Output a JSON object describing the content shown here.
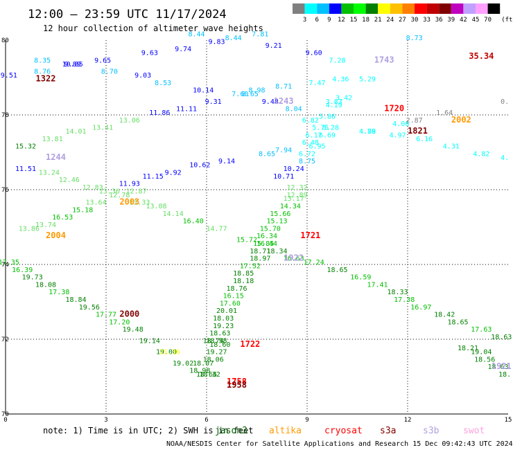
{
  "title": "12:00 – 23:59 UTC 11/17/2024",
  "subtitle": "12 hour collection of altimeter wave heights",
  "colorbar": {
    "labels": [
      "3",
      "6",
      "9",
      "12",
      "15",
      "18",
      "21",
      "24",
      "27",
      "30",
      "33",
      "36",
      "39",
      "42",
      "45",
      "70"
    ],
    "unit": "(ft)",
    "colors": [
      "#808080",
      "#00ffff",
      "#00c0ff",
      "#0000ff",
      "#00c000",
      "#00ff00",
      "#008000",
      "#ffff00",
      "#ffc000",
      "#ff8000",
      "#ff0000",
      "#c00000",
      "#800000",
      "#c000c0",
      "#c0a0ff",
      "#ffa0ff",
      "#000000"
    ]
  },
  "note_text": "note: 1) Time is in UTC; 2) SWH is in feet",
  "satellites": [
    {
      "name": "jason3",
      "color": "#006400"
    },
    {
      "name": "altika",
      "color": "#ff9900"
    },
    {
      "name": "cryosat",
      "color": "#ff0000"
    },
    {
      "name": "s3a",
      "color": "#800000"
    },
    {
      "name": "s3b",
      "color": "#b0a0e0"
    },
    {
      "name": "swot",
      "color": "#ffa0e0"
    }
  ],
  "footer": "NOAA/NESDIS Center for Satellite Applications and Research   15 Dec 09:42:43 UTC 2024",
  "chart_data": {
    "type": "scatter",
    "title": "12:00 – 23:59 UTC 11/17/2024",
    "subtitle": "12 hour collection of altimeter wave heights",
    "xlabel": "",
    "ylabel": "",
    "x_ticks": [
      "0",
      "3",
      "6",
      "9",
      "12",
      "15"
    ],
    "y_ticks": [
      "80",
      "78",
      "76",
      "74",
      "72",
      "70"
    ],
    "xlim": [
      0,
      15
    ],
    "ylim": [
      70,
      80
    ],
    "grid": true,
    "points": [
      {
        "x": 0.1,
        "y": 79.0,
        "v": "9.51",
        "c": "#0000ff"
      },
      {
        "x": 1.1,
        "y": 79.4,
        "v": "8.35",
        "c": "#00c0ff"
      },
      {
        "x": 1.1,
        "y": 79.1,
        "v": "8.76",
        "c": "#00c0ff"
      },
      {
        "x": 2.0,
        "y": 79.3,
        "v": "10.05",
        "c": "#0000ff"
      },
      {
        "x": 2.0,
        "y": 79.3,
        "v": "9.89",
        "c": "#0000ff"
      },
      {
        "x": 2.9,
        "y": 79.4,
        "v": "9.65",
        "c": "#0000ff"
      },
      {
        "x": 3.1,
        "y": 79.1,
        "v": "8.70",
        "c": "#00c0ff"
      },
      {
        "x": 4.1,
        "y": 79.0,
        "v": "9.03",
        "c": "#0000ff"
      },
      {
        "x": 4.3,
        "y": 79.6,
        "v": "9.63",
        "c": "#0000ff"
      },
      {
        "x": 4.7,
        "y": 78.8,
        "v": "8.53",
        "c": "#00c0ff"
      },
      {
        "x": 5.3,
        "y": 79.7,
        "v": "9.74",
        "c": "#0000ff"
      },
      {
        "x": 5.7,
        "y": 80.1,
        "v": "8.44",
        "c": "#00c0ff"
      },
      {
        "x": 6.3,
        "y": 79.9,
        "v": "9.83",
        "c": "#0000ff"
      },
      {
        "x": 6.8,
        "y": 80.0,
        "v": "8.44",
        "c": "#00c0ff"
      },
      {
        "x": 7.6,
        "y": 80.1,
        "v": "7.81",
        "c": "#00c0ff"
      },
      {
        "x": 8.0,
        "y": 79.8,
        "v": "9.21",
        "c": "#0000ff"
      },
      {
        "x": 9.2,
        "y": 79.6,
        "v": "9.60",
        "c": "#0000ff"
      },
      {
        "x": 5.9,
        "y": 78.6,
        "v": "10.14",
        "c": "#0000ff"
      },
      {
        "x": 5.4,
        "y": 78.1,
        "v": "11.11",
        "c": "#0000ff"
      },
      {
        "x": 4.6,
        "y": 78.0,
        "v": "11.86",
        "c": "#0000ff"
      },
      {
        "x": 6.2,
        "y": 78.3,
        "v": "9.31",
        "c": "#0000ff"
      },
      {
        "x": 7.0,
        "y": 78.5,
        "v": "7.60",
        "c": "#00c0ff"
      },
      {
        "x": 7.3,
        "y": 78.5,
        "v": "8.65",
        "c": "#00c0ff"
      },
      {
        "x": 7.5,
        "y": 78.6,
        "v": "8.98",
        "c": "#00c0ff"
      },
      {
        "x": 7.9,
        "y": 78.3,
        "v": "9.48",
        "c": "#0000ff"
      },
      {
        "x": 8.3,
        "y": 78.7,
        "v": "8.71",
        "c": "#00c0ff"
      },
      {
        "x": 8.6,
        "y": 78.1,
        "v": "8.04",
        "c": "#00c0ff"
      },
      {
        "x": 9.3,
        "y": 78.8,
        "v": "7.47",
        "c": "#00ffff"
      },
      {
        "x": 9.9,
        "y": 79.4,
        "v": "7.28",
        "c": "#00ffff"
      },
      {
        "x": 10.0,
        "y": 78.9,
        "v": "4.36",
        "c": "#00ffff"
      },
      {
        "x": 10.8,
        "y": 78.9,
        "v": "5.29",
        "c": "#00ffff"
      },
      {
        "x": 12.2,
        "y": 80.0,
        "v": "8.73",
        "c": "#00c0ff"
      },
      {
        "x": 10.1,
        "y": 78.4,
        "v": "3.42",
        "c": "#00ffff"
      },
      {
        "x": 9.8,
        "y": 78.3,
        "v": "3.83",
        "c": "#00ffff"
      },
      {
        "x": 9.8,
        "y": 78.2,
        "v": "4.19",
        "c": "#00ffff"
      },
      {
        "x": 9.6,
        "y": 77.9,
        "v": "5.86",
        "c": "#00ffff"
      },
      {
        "x": 9.1,
        "y": 77.8,
        "v": "6.82",
        "c": "#00ffff"
      },
      {
        "x": 9.7,
        "y": 77.6,
        "v": "5.28",
        "c": "#00ffff"
      },
      {
        "x": 9.4,
        "y": 77.6,
        "v": "5.75",
        "c": "#00ffff"
      },
      {
        "x": 9.2,
        "y": 77.4,
        "v": "6.17",
        "c": "#00ffff"
      },
      {
        "x": 9.1,
        "y": 77.2,
        "v": "6.48",
        "c": "#00ffff"
      },
      {
        "x": 9.6,
        "y": 77.4,
        "v": "6.69",
        "c": "#00ffff"
      },
      {
        "x": 9.3,
        "y": 77.1,
        "v": "6.95",
        "c": "#00ffff"
      },
      {
        "x": 9.0,
        "y": 76.9,
        "v": "6.72",
        "c": "#00ffff"
      },
      {
        "x": 8.3,
        "y": 77.0,
        "v": "7.94",
        "c": "#00c0ff"
      },
      {
        "x": 9.0,
        "y": 76.7,
        "v": "8.75",
        "c": "#00c0ff"
      },
      {
        "x": 7.8,
        "y": 76.9,
        "v": "8.65",
        "c": "#00c0ff"
      },
      {
        "x": 8.6,
        "y": 76.5,
        "v": "10.24",
        "c": "#0000ff"
      },
      {
        "x": 8.3,
        "y": 76.3,
        "v": "10.71",
        "c": "#0000ff"
      },
      {
        "x": 6.6,
        "y": 76.7,
        "v": "9.14",
        "c": "#0000ff"
      },
      {
        "x": 5.8,
        "y": 76.6,
        "v": "10.62",
        "c": "#0000ff"
      },
      {
        "x": 5.0,
        "y": 76.4,
        "v": "9.92",
        "c": "#0000ff"
      },
      {
        "x": 4.4,
        "y": 76.3,
        "v": "11.15",
        "c": "#0000ff"
      },
      {
        "x": 3.7,
        "y": 76.1,
        "v": "11.93",
        "c": "#0000ff"
      },
      {
        "x": 0.6,
        "y": 76.5,
        "v": "11.51",
        "c": "#0000ff"
      },
      {
        "x": 10.8,
        "y": 77.5,
        "v": "4.79",
        "c": "#00ffff"
      },
      {
        "x": 10.8,
        "y": 77.5,
        "v": "4.88",
        "c": "#00ffff"
      },
      {
        "x": 11.8,
        "y": 77.7,
        "v": "4.06",
        "c": "#00ffff"
      },
      {
        "x": 11.7,
        "y": 77.4,
        "v": "4.97",
        "c": "#00ffff"
      },
      {
        "x": 12.5,
        "y": 77.3,
        "v": "6.16",
        "c": "#00ffff"
      },
      {
        "x": 13.3,
        "y": 77.1,
        "v": "4.31",
        "c": "#00ffff"
      },
      {
        "x": 14.2,
        "y": 76.9,
        "v": "4.82",
        "c": "#00ffff"
      },
      {
        "x": 14.9,
        "y": 76.8,
        "v": "4.",
        "c": "#00ffff"
      },
      {
        "x": 12.2,
        "y": 77.8,
        "v": "2.87",
        "c": "#808080"
      },
      {
        "x": 13.1,
        "y": 78.0,
        "v": "1.64",
        "c": "#808080"
      },
      {
        "x": 14.9,
        "y": 78.3,
        "v": "0.",
        "c": "#808080"
      },
      {
        "x": 0.6,
        "y": 77.1,
        "v": "15.32",
        "c": "#008000"
      },
      {
        "x": 1.4,
        "y": 77.3,
        "v": "13.81",
        "c": "#66dd66"
      },
      {
        "x": 2.1,
        "y": 77.5,
        "v": "14.01",
        "c": "#66dd66"
      },
      {
        "x": 2.9,
        "y": 77.6,
        "v": "13.41",
        "c": "#66dd66"
      },
      {
        "x": 3.7,
        "y": 77.8,
        "v": "13.06",
        "c": "#66dd66"
      },
      {
        "x": 1.3,
        "y": 76.4,
        "v": "13.24",
        "c": "#66dd66"
      },
      {
        "x": 1.9,
        "y": 76.2,
        "v": "12.46",
        "c": "#66dd66"
      },
      {
        "x": 2.6,
        "y": 76.0,
        "v": "12.83",
        "c": "#66dd66"
      },
      {
        "x": 3.1,
        "y": 75.9,
        "v": "13.36",
        "c": "#66dd66"
      },
      {
        "x": 3.4,
        "y": 75.8,
        "v": "12.78",
        "c": "#66dd66"
      },
      {
        "x": 3.9,
        "y": 75.9,
        "v": "12.87",
        "c": "#66dd66"
      },
      {
        "x": 4.0,
        "y": 75.6,
        "v": "13.33",
        "c": "#66dd66"
      },
      {
        "x": 4.5,
        "y": 75.5,
        "v": "13.08",
        "c": "#66dd66"
      },
      {
        "x": 5.0,
        "y": 75.3,
        "v": "14.14",
        "c": "#66dd66"
      },
      {
        "x": 5.6,
        "y": 75.1,
        "v": "16.40",
        "c": "#00c000"
      },
      {
        "x": 6.3,
        "y": 74.9,
        "v": "14.77",
        "c": "#66dd66"
      },
      {
        "x": 2.7,
        "y": 75.6,
        "v": "13.64",
        "c": "#66dd66"
      },
      {
        "x": 2.3,
        "y": 75.4,
        "v": "15.18",
        "c": "#00c000"
      },
      {
        "x": 1.7,
        "y": 75.2,
        "v": "16.53",
        "c": "#00c000"
      },
      {
        "x": 1.2,
        "y": 75.0,
        "v": "13.74",
        "c": "#66dd66"
      },
      {
        "x": 0.7,
        "y": 74.9,
        "v": "13.86",
        "c": "#66dd66"
      },
      {
        "x": 8.7,
        "y": 76.0,
        "v": "12.32",
        "c": "#66dd66"
      },
      {
        "x": 8.7,
        "y": 75.8,
        "v": "12.89",
        "c": "#66dd66"
      },
      {
        "x": 8.6,
        "y": 75.7,
        "v": "13.17",
        "c": "#66dd66"
      },
      {
        "x": 8.5,
        "y": 75.5,
        "v": "14.34",
        "c": "#00c000"
      },
      {
        "x": 8.2,
        "y": 75.3,
        "v": "15.66",
        "c": "#00c000"
      },
      {
        "x": 8.1,
        "y": 75.1,
        "v": "15.13",
        "c": "#00c000"
      },
      {
        "x": 7.9,
        "y": 74.9,
        "v": "15.70",
        "c": "#00c000"
      },
      {
        "x": 7.8,
        "y": 74.7,
        "v": "16.34",
        "c": "#00c000"
      },
      {
        "x": 7.2,
        "y": 74.6,
        "v": "15.72",
        "c": "#00c000"
      },
      {
        "x": 7.8,
        "y": 74.5,
        "v": "16.44",
        "c": "#00c000"
      },
      {
        "x": 7.7,
        "y": 74.5,
        "v": "15.85",
        "c": "#00c000"
      },
      {
        "x": 7.6,
        "y": 74.3,
        "v": "18.71",
        "c": "#008000"
      },
      {
        "x": 8.1,
        "y": 74.3,
        "v": "18.34",
        "c": "#008000"
      },
      {
        "x": 7.6,
        "y": 74.1,
        "v": "18.97",
        "c": "#008000"
      },
      {
        "x": 8.6,
        "y": 74.1,
        "v": "16.63",
        "c": "#00c000"
      },
      {
        "x": 9.2,
        "y": 74.0,
        "v": "17.24",
        "c": "#00c000"
      },
      {
        "x": 7.3,
        "y": 73.9,
        "v": "17.52",
        "c": "#00c000"
      },
      {
        "x": 9.9,
        "y": 73.8,
        "v": "18.65",
        "c": "#008000"
      },
      {
        "x": 7.1,
        "y": 73.7,
        "v": "18.85",
        "c": "#008000"
      },
      {
        "x": 10.6,
        "y": 73.6,
        "v": "16.59",
        "c": "#00c000"
      },
      {
        "x": 7.1,
        "y": 73.5,
        "v": "18.18",
        "c": "#008000"
      },
      {
        "x": 11.1,
        "y": 73.4,
        "v": "17.41",
        "c": "#00c000"
      },
      {
        "x": 6.9,
        "y": 73.3,
        "v": "18.76",
        "c": "#008000"
      },
      {
        "x": 11.7,
        "y": 73.2,
        "v": "18.33",
        "c": "#008000"
      },
      {
        "x": 6.8,
        "y": 73.1,
        "v": "16.15",
        "c": "#00c000"
      },
      {
        "x": 11.9,
        "y": 73.0,
        "v": "17.38",
        "c": "#00c000"
      },
      {
        "x": 6.7,
        "y": 72.9,
        "v": "17.60",
        "c": "#00c000"
      },
      {
        "x": 12.4,
        "y": 72.8,
        "v": "16.97",
        "c": "#00c000"
      },
      {
        "x": 6.6,
        "y": 72.7,
        "v": "20.01",
        "c": "#008000"
      },
      {
        "x": 13.1,
        "y": 72.6,
        "v": "18.42",
        "c": "#008000"
      },
      {
        "x": 6.5,
        "y": 72.5,
        "v": "18.03",
        "c": "#008000"
      },
      {
        "x": 13.5,
        "y": 72.4,
        "v": "18.65",
        "c": "#008000"
      },
      {
        "x": 6.5,
        "y": 72.3,
        "v": "19.23",
        "c": "#008000"
      },
      {
        "x": 14.2,
        "y": 72.2,
        "v": "17.63",
        "c": "#00c000"
      },
      {
        "x": 6.4,
        "y": 72.1,
        "v": "18.63",
        "c": "#008000"
      },
      {
        "x": 14.8,
        "y": 72.0,
        "v": "18.63",
        "c": "#008000"
      },
      {
        "x": 6.3,
        "y": 71.9,
        "v": "18.58",
        "c": "#008000"
      },
      {
        "x": 6.2,
        "y": 71.9,
        "v": "18.74",
        "c": "#008000"
      },
      {
        "x": 6.4,
        "y": 71.8,
        "v": "18.60",
        "c": "#008000"
      },
      {
        "x": 6.3,
        "y": 71.6,
        "v": "19.27",
        "c": "#008000"
      },
      {
        "x": 6.2,
        "y": 71.4,
        "v": "18.06",
        "c": "#008000"
      },
      {
        "x": 5.9,
        "y": 71.3,
        "v": "18.07",
        "c": "#008000"
      },
      {
        "x": 5.8,
        "y": 71.1,
        "v": "18.98",
        "c": "#008000"
      },
      {
        "x": 6.0,
        "y": 71.0,
        "v": "18.66",
        "c": "#008000"
      },
      {
        "x": 6.1,
        "y": 71.0,
        "v": "18.32",
        "c": "#008000"
      },
      {
        "x": 5.3,
        "y": 71.3,
        "v": "19.02",
        "c": "#008000"
      },
      {
        "x": 4.8,
        "y": 71.6,
        "v": "19.00",
        "c": "#008000"
      },
      {
        "x": 4.3,
        "y": 71.9,
        "v": "19.14",
        "c": "#008000"
      },
      {
        "x": 3.8,
        "y": 72.2,
        "v": "19.48",
        "c": "#008000"
      },
      {
        "x": 3.4,
        "y": 72.4,
        "v": "17.20",
        "c": "#00c000"
      },
      {
        "x": 3.0,
        "y": 72.6,
        "v": "17.77",
        "c": "#00c000"
      },
      {
        "x": 2.5,
        "y": 72.8,
        "v": "19.56",
        "c": "#008000"
      },
      {
        "x": 2.1,
        "y": 73.0,
        "v": "18.84",
        "c": "#008000"
      },
      {
        "x": 1.6,
        "y": 73.2,
        "v": "17.38",
        "c": "#00c000"
      },
      {
        "x": 1.2,
        "y": 73.4,
        "v": "18.08",
        "c": "#008000"
      },
      {
        "x": 0.8,
        "y": 73.6,
        "v": "19.73",
        "c": "#008000"
      },
      {
        "x": 0.5,
        "y": 73.8,
        "v": "16.39",
        "c": "#00c000"
      },
      {
        "x": 0.1,
        "y": 74.0,
        "v": "17.35",
        "c": "#00c000"
      },
      {
        "x": 4.9,
        "y": 71.6,
        "v": "21.36",
        "c": "#ffff00"
      },
      {
        "x": 13.8,
        "y": 71.7,
        "v": "18.21",
        "c": "#008000"
      },
      {
        "x": 14.2,
        "y": 71.6,
        "v": "19.04",
        "c": "#008000"
      },
      {
        "x": 14.3,
        "y": 71.4,
        "v": "18.56",
        "c": "#008000"
      },
      {
        "x": 14.7,
        "y": 71.2,
        "v": "18.63",
        "c": "#008000"
      },
      {
        "x": 14.9,
        "y": 71.0,
        "v": "18.",
        "c": "#008000"
      }
    ],
    "track_labels": [
      {
        "x": 1.2,
        "y": 78.9,
        "v": "1322",
        "c": "#800000"
      },
      {
        "x": 11.3,
        "y": 79.4,
        "v": "1743",
        "c": "#b0a0e0"
      },
      {
        "x": 14.2,
        "y": 79.5,
        "v": "35.34",
        "c": "#c00000"
      },
      {
        "x": 8.3,
        "y": 78.3,
        "v": "1243",
        "c": "#b0a0e0"
      },
      {
        "x": 11.6,
        "y": 78.1,
        "v": "1720",
        "c": "#ff0000"
      },
      {
        "x": 12.3,
        "y": 77.5,
        "v": "1821",
        "c": "#800000"
      },
      {
        "x": 13.6,
        "y": 77.8,
        "v": "2002",
        "c": "#ff9900"
      },
      {
        "x": 1.5,
        "y": 76.8,
        "v": "1244",
        "c": "#b0a0e0"
      },
      {
        "x": 3.7,
        "y": 75.6,
        "v": "2003",
        "c": "#ff9900"
      },
      {
        "x": 1.5,
        "y": 74.7,
        "v": "2004",
        "c": "#ff9900"
      },
      {
        "x": 9.1,
        "y": 74.7,
        "v": "1721",
        "c": "#ff0000"
      },
      {
        "x": 8.6,
        "y": 74.1,
        "v": "1922",
        "c": "#b0a0e0"
      },
      {
        "x": 3.7,
        "y": 72.6,
        "v": "2000",
        "c": "#800000"
      },
      {
        "x": 7.3,
        "y": 71.8,
        "v": "1722",
        "c": "#ff0000"
      },
      {
        "x": 6.9,
        "y": 70.8,
        "v": "1758",
        "c": "#ff0000"
      },
      {
        "x": 6.9,
        "y": 70.7,
        "v": "1958",
        "c": "#800000"
      },
      {
        "x": 14.8,
        "y": 71.2,
        "v": "1921",
        "c": "#b0a0e0"
      }
    ]
  }
}
